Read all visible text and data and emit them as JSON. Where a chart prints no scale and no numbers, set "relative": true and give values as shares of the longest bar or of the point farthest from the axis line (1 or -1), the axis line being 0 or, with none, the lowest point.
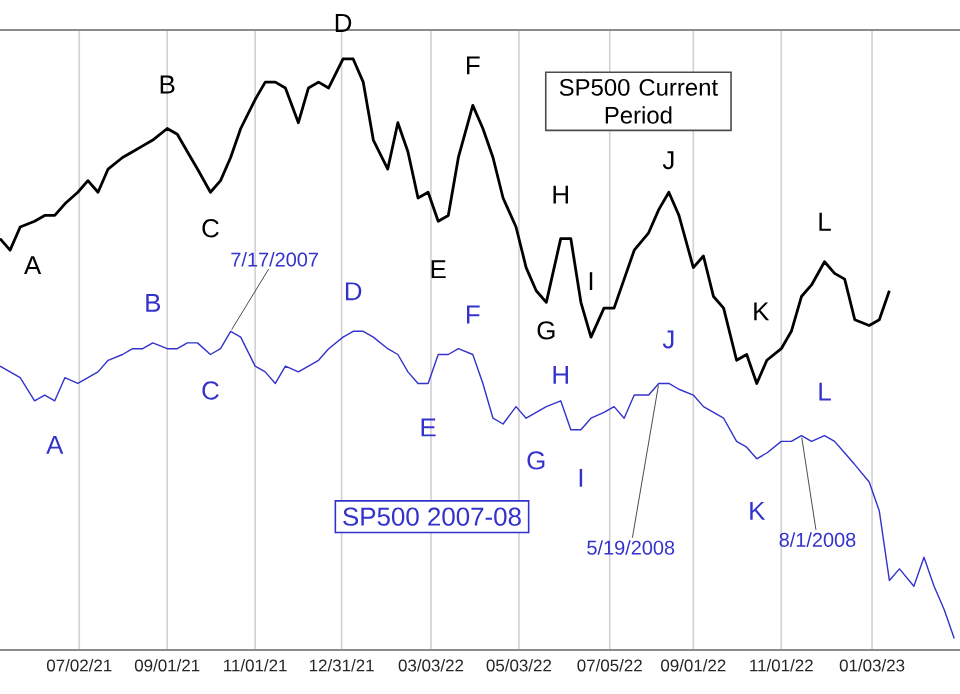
{
  "chart_data": {
    "type": "line",
    "relative": true,
    "grid": "x",
    "tick_labels": "x",
    "xlim": [
      "2021-05-08",
      "2023-03-05"
    ],
    "xticks": [
      {
        "value": "2021-07-02",
        "label": "07/02/21"
      },
      {
        "value": "2021-09-01",
        "label": "09/01/21"
      },
      {
        "value": "2021-11-01",
        "label": "11/01/21"
      },
      {
        "value": "2021-12-31",
        "label": "12/31/21"
      },
      {
        "value": "2022-03-03",
        "label": "03/03/22"
      },
      {
        "value": "2022-05-03",
        "label": "05/03/22"
      },
      {
        "value": "2022-07-05",
        "label": "07/05/22"
      },
      {
        "value": "2022-09-01",
        "label": "09/01/22"
      },
      {
        "value": "2022-11-01",
        "label": "11/01/22"
      },
      {
        "value": "2023-01-03",
        "label": "01/03/23"
      }
    ],
    "series": [
      {
        "name": "SP500 Current Period",
        "color": "#000000",
        "x": [
          "2021-05-08",
          "2021-05-15",
          "2021-05-22",
          "2021-06-01",
          "2021-06-08",
          "2021-06-15",
          "2021-06-22",
          "2021-07-01",
          "2021-07-08",
          "2021-07-15",
          "2021-07-22",
          "2021-08-01",
          "2021-08-08",
          "2021-08-15",
          "2021-08-22",
          "2021-09-01",
          "2021-09-08",
          "2021-09-15",
          "2021-09-22",
          "2021-10-01",
          "2021-10-08",
          "2021-10-15",
          "2021-10-22",
          "2021-11-01",
          "2021-11-08",
          "2021-11-15",
          "2021-11-22",
          "2021-12-01",
          "2021-12-08",
          "2021-12-15",
          "2021-12-22",
          "2022-01-01",
          "2022-01-08",
          "2022-01-15",
          "2022-01-22",
          "2022-02-01",
          "2022-02-08",
          "2022-02-15",
          "2022-02-22",
          "2022-03-01",
          "2022-03-08",
          "2022-03-15",
          "2022-03-22",
          "2022-04-01",
          "2022-04-08",
          "2022-04-15",
          "2022-04-22",
          "2022-05-01",
          "2022-05-08",
          "2022-05-15",
          "2022-05-22",
          "2022-06-01",
          "2022-06-08",
          "2022-06-15",
          "2022-06-22",
          "2022-07-01",
          "2022-07-08",
          "2022-07-15",
          "2022-07-22",
          "2022-08-01",
          "2022-08-08",
          "2022-08-15",
          "2022-08-22",
          "2022-09-01",
          "2022-09-08",
          "2022-09-15",
          "2022-09-22",
          "2022-10-01",
          "2022-10-08",
          "2022-10-15",
          "2022-10-22",
          "2022-11-01",
          "2022-11-08",
          "2022-11-15",
          "2022-11-22",
          "2022-12-01",
          "2022-12-08",
          "2022-12-15",
          "2022-12-22",
          "2023-01-01",
          "2023-01-08",
          "2023-01-15"
        ],
        "values": [
          0.69,
          0.67,
          0.71,
          0.72,
          0.73,
          0.73,
          0.75,
          0.77,
          0.79,
          0.77,
          0.81,
          0.83,
          0.84,
          0.85,
          0.86,
          0.88,
          0.87,
          0.84,
          0.81,
          0.77,
          0.79,
          0.83,
          0.88,
          0.93,
          0.96,
          0.96,
          0.95,
          0.89,
          0.95,
          0.96,
          0.95,
          1.0,
          1.0,
          0.96,
          0.86,
          0.81,
          0.89,
          0.84,
          0.76,
          0.77,
          0.72,
          0.73,
          0.83,
          0.92,
          0.88,
          0.83,
          0.76,
          0.71,
          0.64,
          0.6,
          0.58,
          0.69,
          0.69,
          0.58,
          0.52,
          0.57,
          0.57,
          0.62,
          0.67,
          0.7,
          0.74,
          0.77,
          0.73,
          0.64,
          0.66,
          0.59,
          0.57,
          0.48,
          0.49,
          0.44,
          0.48,
          0.5,
          0.53,
          0.59,
          0.61,
          0.65,
          0.63,
          0.62,
          0.55,
          0.54,
          0.55,
          0.6
        ]
      },
      {
        "name": "SP500 2007-08",
        "color": "#3333cc",
        "x": [
          "2021-05-08",
          "2021-05-15",
          "2021-05-22",
          "2021-06-01",
          "2021-06-08",
          "2021-06-15",
          "2021-06-22",
          "2021-07-01",
          "2021-07-08",
          "2021-07-15",
          "2021-07-22",
          "2021-08-01",
          "2021-08-08",
          "2021-08-15",
          "2021-08-22",
          "2021-09-01",
          "2021-09-08",
          "2021-09-15",
          "2021-09-22",
          "2021-10-01",
          "2021-10-08",
          "2021-10-15",
          "2021-10-22",
          "2021-11-01",
          "2021-11-08",
          "2021-11-15",
          "2021-11-22",
          "2021-12-01",
          "2021-12-08",
          "2021-12-15",
          "2021-12-22",
          "2022-01-01",
          "2022-01-08",
          "2022-01-15",
          "2022-01-22",
          "2022-02-01",
          "2022-02-08",
          "2022-02-15",
          "2022-02-22",
          "2022-03-01",
          "2022-03-08",
          "2022-03-15",
          "2022-03-22",
          "2022-04-01",
          "2022-04-08",
          "2022-04-15",
          "2022-04-22",
          "2022-05-01",
          "2022-05-08",
          "2022-05-15",
          "2022-05-22",
          "2022-06-01",
          "2022-06-08",
          "2022-06-15",
          "2022-06-22",
          "2022-07-01",
          "2022-07-08",
          "2022-07-15",
          "2022-07-22",
          "2022-08-01",
          "2022-08-08",
          "2022-08-15",
          "2022-08-22",
          "2022-09-01",
          "2022-09-08",
          "2022-09-15",
          "2022-09-22",
          "2022-10-01",
          "2022-10-08",
          "2022-10-15",
          "2022-10-22",
          "2022-11-01",
          "2022-11-08",
          "2022-11-15",
          "2022-11-22",
          "2022-12-01",
          "2022-12-08",
          "2022-12-15",
          "2022-12-22",
          "2023-01-01",
          "2023-01-08",
          "2023-01-15",
          "2023-01-22",
          "2023-02-01",
          "2023-02-08",
          "2023-02-15",
          "2023-02-22",
          "2023-03-01"
        ],
        "values": [
          0.47,
          0.46,
          0.45,
          0.41,
          0.42,
          0.41,
          0.45,
          0.44,
          0.45,
          0.46,
          0.48,
          0.49,
          0.5,
          0.5,
          0.51,
          0.5,
          0.5,
          0.51,
          0.51,
          0.49,
          0.5,
          0.53,
          0.52,
          0.47,
          0.46,
          0.44,
          0.47,
          0.46,
          0.47,
          0.48,
          0.5,
          0.52,
          0.53,
          0.53,
          0.52,
          0.5,
          0.49,
          0.46,
          0.44,
          0.44,
          0.49,
          0.49,
          0.5,
          0.49,
          0.44,
          0.38,
          0.37,
          0.4,
          0.38,
          0.39,
          0.4,
          0.41,
          0.36,
          0.36,
          0.38,
          0.39,
          0.4,
          0.38,
          0.42,
          0.42,
          0.44,
          0.44,
          0.43,
          0.42,
          0.4,
          0.39,
          0.38,
          0.34,
          0.33,
          0.31,
          0.32,
          0.34,
          0.34,
          0.35,
          0.34,
          0.35,
          0.34,
          0.32,
          0.3,
          0.27,
          0.22,
          0.1,
          0.12,
          0.09,
          0.14,
          0.09,
          0.05,
          0.0
        ]
      }
    ],
    "annotations": [
      {
        "text": "A",
        "x": "2021-06-01",
        "y": 0.72
      },
      {
        "text": "B",
        "x": "2021-09-01",
        "y": 0.88
      },
      {
        "text": "C",
        "x": "2021-10-01",
        "y": 0.77
      },
      {
        "text": "D",
        "x": "2022-01-01",
        "y": 1.0
      },
      {
        "text": "E",
        "x": "2022-03-08",
        "y": 0.72
      },
      {
        "text": "F",
        "x": "2022-04-01",
        "y": 0.92
      },
      {
        "text": "G",
        "x": "2022-05-22",
        "y": 0.58
      },
      {
        "text": "H",
        "x": "2022-06-01",
        "y": 0.69
      },
      {
        "text": "I",
        "x": "2022-06-22",
        "y": 0.52
      },
      {
        "text": "J",
        "x": "2022-08-15",
        "y": 0.77
      },
      {
        "text": "K",
        "x": "2022-10-15",
        "y": 0.44
      },
      {
        "text": "L",
        "x": "2022-12-01",
        "y": 0.65
      },
      {
        "text": "A",
        "x": "2021-06-15",
        "y": 0.41
      },
      {
        "text": "B",
        "x": "2021-08-22",
        "y": 0.51
      },
      {
        "text": "C",
        "x": "2021-10-01",
        "y": 0.49
      },
      {
        "text": "D",
        "x": "2022-01-08",
        "y": 0.53
      },
      {
        "text": "E",
        "x": "2022-03-01",
        "y": 0.44
      },
      {
        "text": "F",
        "x": "2022-04-01",
        "y": 0.49
      },
      {
        "text": "G",
        "x": "2022-05-15",
        "y": 0.39
      },
      {
        "text": "H",
        "x": "2022-06-01",
        "y": 0.41
      },
      {
        "text": "I",
        "x": "2022-06-15",
        "y": 0.36
      },
      {
        "text": "J",
        "x": "2022-08-15",
        "y": 0.44
      },
      {
        "text": "K",
        "x": "2022-10-15",
        "y": 0.31
      },
      {
        "text": "L",
        "x": "2022-12-01",
        "y": 0.35
      },
      {
        "text": "7/17/2007",
        "x": "2021-10-15",
        "y": 0.53
      },
      {
        "text": "5/19/2008",
        "x": "2022-08-08",
        "y": 0.44
      },
      {
        "text": "8/1/2008",
        "x": "2022-11-15",
        "y": 0.35
      }
    ]
  }
}
